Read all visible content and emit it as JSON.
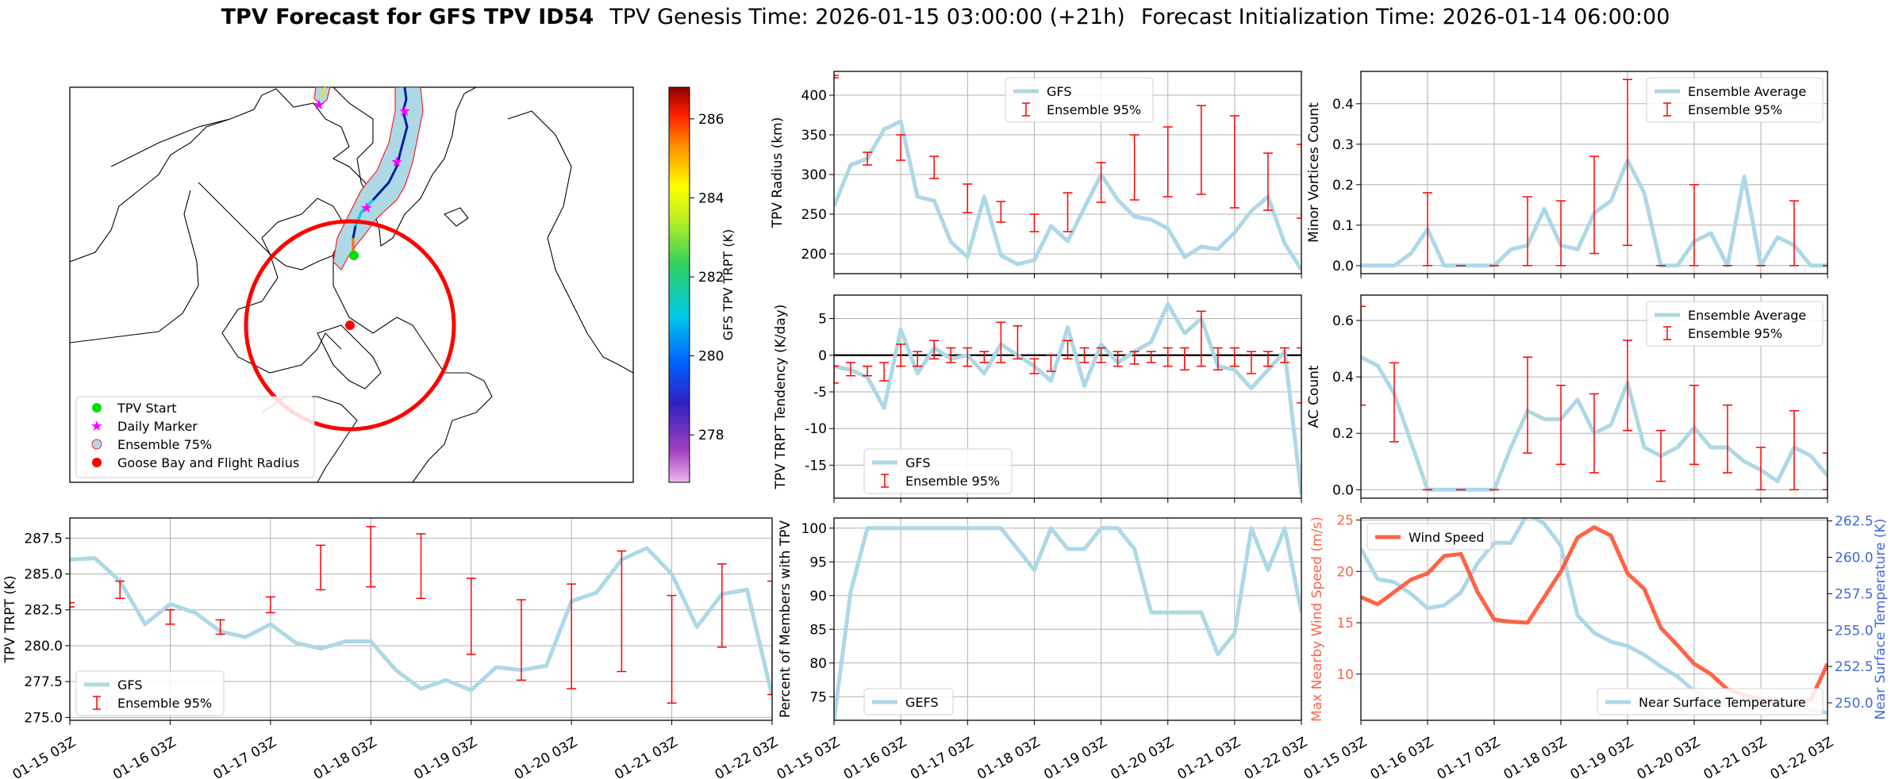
{
  "header": {
    "title_bold": "TPV Forecast for GFS TPV ID54",
    "genesis": "TPV Genesis Time: 2026-01-15 03:00:00 (+21h)",
    "init": "Forecast Initialization Time: 2026-01-14 06:00:00"
  },
  "colors": {
    "gfs_line": "#add8e6",
    "ensemble_bar": "#ff0000",
    "wind": "#ff6347",
    "temp_axis": "#4169e1",
    "grid": "#b0b0b0"
  },
  "chart_data": [
    {
      "id": "map",
      "type": "map",
      "legend": [
        "TPV Start",
        "Daily Marker",
        "Ensemble 75%",
        "Goose Bay and Flight Radius"
      ],
      "colorbar": {
        "label": "GFS TPV TRPT (K)",
        "ticks": [
          278,
          280,
          282,
          284,
          286
        ],
        "range": [
          276.8,
          286.8
        ]
      }
    },
    {
      "id": "radius",
      "type": "line",
      "ylabel": "TPV Radius (km)",
      "ylim": [
        175,
        430
      ],
      "yticks": [
        200,
        250,
        300,
        350,
        400
      ],
      "legend": [
        "GFS",
        "Ensemble 95%"
      ],
      "legend_pos": "top-center",
      "x": [
        0,
        0.25,
        0.5,
        0.75,
        1,
        1.25,
        1.5,
        1.75,
        2,
        2.25,
        2.5,
        2.75,
        3,
        3.25,
        3.5,
        3.75,
        4,
        4.25,
        4.5,
        4.75,
        5,
        5.25,
        5.5,
        5.75,
        6,
        6.25,
        6.5,
        6.75,
        7
      ],
      "gfs": [
        260,
        312,
        320,
        357,
        367,
        272,
        267,
        215,
        196,
        272,
        198,
        187,
        192,
        235,
        216,
        258,
        300,
        268,
        247,
        243,
        232,
        196,
        209,
        206,
        227,
        254,
        272,
        213,
        180
      ],
      "err_x": [
        0,
        0.5,
        1,
        1.5,
        2,
        2.5,
        3,
        3.5,
        4,
        4.5,
        5,
        5.5,
        6,
        6.5,
        7
      ],
      "err_lo": [
        422,
        312,
        318,
        295,
        252,
        240,
        228,
        228,
        265,
        268,
        272,
        275,
        258,
        255,
        245
      ],
      "err_hi": [
        425,
        328,
        350,
        323,
        288,
        266,
        250,
        277,
        315,
        350,
        360,
        387,
        374,
        327,
        338
      ]
    },
    {
      "id": "minor_vortices",
      "type": "line",
      "ylabel": "Minor Vortices Count",
      "ylim": [
        -0.02,
        0.48
      ],
      "yticks": [
        0.0,
        0.1,
        0.2,
        0.3,
        0.4
      ],
      "legend": [
        "Ensemble Average",
        "Ensemble 95%"
      ],
      "legend_pos": "top-right",
      "x": [
        0,
        0.25,
        0.5,
        0.75,
        1,
        1.25,
        1.5,
        1.75,
        2,
        2.25,
        2.5,
        2.75,
        3,
        3.25,
        3.5,
        3.75,
        4,
        4.25,
        4.5,
        4.75,
        5,
        5.25,
        5.5,
        5.75,
        6,
        6.25,
        6.5,
        6.75,
        7
      ],
      "avg": [
        0,
        0,
        0,
        0.03,
        0.09,
        0,
        0,
        0,
        0,
        0.04,
        0.05,
        0.14,
        0.05,
        0.04,
        0.13,
        0.16,
        0.26,
        0.18,
        0,
        0,
        0.06,
        0.08,
        0,
        0.22,
        0,
        0.07,
        0.05,
        0,
        0
      ],
      "err_x": [
        1,
        1.5,
        2,
        2.5,
        3,
        3.5,
        4,
        4.5,
        5,
        5.5,
        6,
        6.5,
        7
      ],
      "err_lo": [
        0,
        0,
        0,
        0,
        0,
        0.03,
        0.05,
        0,
        0,
        0,
        0,
        0,
        0
      ],
      "err_hi": [
        0.18,
        0,
        0,
        0.17,
        0.16,
        0.27,
        0.46,
        0,
        0.2,
        0,
        0,
        0.16,
        0
      ]
    },
    {
      "id": "tendency",
      "type": "line",
      "ylabel": "TPV TRPT Tendency (K/day)",
      "ylim": [
        -19.5,
        8.2
      ],
      "yticks": [
        -15,
        -10,
        -5,
        0,
        5
      ],
      "legend": [
        "GFS",
        "Ensemble 95%"
      ],
      "legend_pos": "bottom-left",
      "x": [
        0,
        0.25,
        0.5,
        0.75,
        1,
        1.25,
        1.5,
        1.75,
        2,
        2.25,
        2.5,
        2.75,
        3,
        3.25,
        3.5,
        3.75,
        4,
        4.25,
        4.5,
        4.75,
        5,
        5.25,
        5.5,
        5.75,
        6,
        6.25,
        6.5,
        6.75,
        7
      ],
      "gfs": [
        -1.5,
        -2.0,
        -3.0,
        -7.2,
        3.5,
        -2.5,
        1.0,
        -0.5,
        0.0,
        -2.5,
        1.5,
        0.0,
        -1.5,
        -3.5,
        3.8,
        -4.2,
        1.5,
        -1.0,
        0.5,
        1.8,
        7.0,
        3.0,
        5.0,
        -1.5,
        -2.0,
        -4.5,
        -2.0,
        0.5,
        -19.0
      ],
      "err_x": [
        0,
        0.25,
        0.5,
        0.75,
        1,
        1.25,
        1.5,
        1.75,
        2,
        2.25,
        2.5,
        2.75,
        3,
        3.25,
        3.5,
        3.75,
        4,
        4.25,
        4.5,
        4.75,
        5,
        5.25,
        5.5,
        5.75,
        6,
        6.25,
        6.5,
        6.75,
        7
      ],
      "err_lo": [
        -3.8,
        -2.8,
        -2.8,
        -3.5,
        -1.5,
        -1.5,
        -0.5,
        -1.0,
        -1.5,
        -1.0,
        -1.0,
        -0.5,
        -2.5,
        -2.2,
        -0.5,
        -1.0,
        -1.0,
        -1.5,
        -1.2,
        -1.0,
        -1.5,
        -2.0,
        -1.5,
        -2.0,
        -1.5,
        -2.5,
        -1.5,
        -1.0,
        -6.5
      ],
      "err_hi": [
        -1.5,
        -1.0,
        -1.5,
        -1.0,
        1.5,
        0.5,
        2.0,
        1.0,
        1.0,
        0.5,
        4.5,
        4.0,
        -0.5,
        0.0,
        2.0,
        1.0,
        1.0,
        0.5,
        0.5,
        0.5,
        1.0,
        1.0,
        6.0,
        1.0,
        1.0,
        0.5,
        0.5,
        1.0,
        1.0
      ],
      "hline": 0
    },
    {
      "id": "ac_count",
      "type": "line",
      "ylabel": "AC Count",
      "ylim": [
        -0.03,
        0.69
      ],
      "yticks": [
        0.0,
        0.2,
        0.4,
        0.6
      ],
      "legend": [
        "Ensemble Average",
        "Ensemble 95%"
      ],
      "legend_pos": "top-right",
      "x": [
        0,
        0.25,
        0.5,
        0.75,
        1,
        1.25,
        1.5,
        1.75,
        2,
        2.25,
        2.5,
        2.75,
        3,
        3.25,
        3.5,
        3.75,
        4,
        4.25,
        4.5,
        4.75,
        5,
        5.25,
        5.5,
        5.75,
        6,
        6.25,
        6.5,
        6.75,
        7
      ],
      "avg": [
        0.47,
        0.44,
        0.34,
        0.17,
        0,
        0,
        0,
        0,
        0,
        0.15,
        0.28,
        0.25,
        0.25,
        0.32,
        0.2,
        0.23,
        0.38,
        0.15,
        0.12,
        0.15,
        0.22,
        0.15,
        0.15,
        0.1,
        0.07,
        0.03,
        0.15,
        0.12,
        0.05
      ],
      "err_x": [
        0,
        0.5,
        1,
        1.5,
        2,
        2.5,
        3,
        3.5,
        4,
        4.5,
        5,
        5.5,
        6,
        6.5,
        7
      ],
      "err_lo": [
        0.3,
        0.17,
        0,
        0,
        0,
        0.13,
        0.09,
        0.06,
        0.21,
        0.03,
        0.09,
        0.06,
        0,
        0,
        0
      ],
      "err_hi": [
        0.65,
        0.45,
        0,
        0,
        0,
        0.47,
        0.37,
        0.34,
        0.53,
        0.21,
        0.37,
        0.3,
        0.15,
        0.28,
        0.13
      ]
    },
    {
      "id": "trpt",
      "type": "line",
      "ylabel": "TPV TRPT (K)",
      "ylim": [
        274.8,
        288.9
      ],
      "yticks": [
        275.0,
        277.5,
        280.0,
        282.5,
        285.0,
        287.5
      ],
      "ytick_labels": [
        "275.0",
        "277.5",
        "280.0",
        "282.5",
        "285.0",
        "287.5"
      ],
      "legend": [
        "GFS",
        "Ensemble 95%"
      ],
      "legend_pos": "bottom-left",
      "xtick_labels": [
        "01-15 03Z",
        "01-16 03Z",
        "01-17 03Z",
        "01-18 03Z",
        "01-19 03Z",
        "01-20 03Z",
        "01-21 03Z",
        "01-22 03Z"
      ],
      "x": [
        0,
        0.25,
        0.5,
        0.75,
        1,
        1.25,
        1.5,
        1.75,
        2,
        2.25,
        2.5,
        2.75,
        3,
        3.25,
        3.5,
        3.75,
        4,
        4.25,
        4.5,
        4.75,
        5,
        5.25,
        5.5,
        5.75,
        6,
        6.25,
        6.5,
        6.75,
        7
      ],
      "gfs": [
        286.0,
        286.1,
        284.5,
        281.5,
        282.9,
        282.3,
        281.0,
        280.6,
        281.5,
        280.2,
        279.8,
        280.3,
        280.3,
        278.3,
        277.0,
        277.6,
        276.9,
        278.5,
        278.3,
        278.6,
        283.1,
        283.7,
        286.0,
        286.8,
        285.0,
        281.3,
        283.6,
        283.9,
        276.5
      ],
      "err_x": [
        0,
        0.5,
        1,
        1.5,
        2,
        2.5,
        3,
        3.5,
        4,
        4.5,
        5,
        5.5,
        6,
        6.5,
        7
      ],
      "err_lo": [
        282.7,
        283.3,
        281.5,
        280.8,
        282.3,
        283.9,
        284.1,
        283.3,
        279.4,
        277.6,
        277.0,
        278.2,
        276.0,
        279.9,
        276.6
      ],
      "err_hi": [
        283.0,
        284.5,
        282.5,
        281.8,
        283.4,
        287.0,
        288.3,
        287.8,
        284.7,
        283.2,
        284.3,
        286.6,
        283.5,
        285.7,
        284.5
      ]
    },
    {
      "id": "percent_members",
      "type": "line",
      "ylabel": "Percent of Members with TPV",
      "ylim": [
        71.5,
        101.5
      ],
      "yticks": [
        75,
        80,
        85,
        90,
        95,
        100
      ],
      "legend": [
        "GEFS"
      ],
      "legend_pos": "bottom-left",
      "xtick_labels": [
        "01-15 03Z",
        "01-16 03Z",
        "01-17 03Z",
        "01-18 03Z",
        "01-19 03Z",
        "01-20 03Z",
        "01-21 03Z",
        "01-22 03Z"
      ],
      "x": [
        0,
        0.25,
        0.5,
        0.75,
        1,
        1.25,
        1.5,
        1.75,
        2,
        2.25,
        2.5,
        2.75,
        3,
        3.25,
        3.5,
        3.75,
        4,
        4.25,
        4.5,
        4.75,
        5,
        5.25,
        5.5,
        5.75,
        6,
        6.25,
        6.5,
        6.75,
        7
      ],
      "gefs": [
        71.5,
        90.6,
        100,
        100,
        100,
        100,
        100,
        100,
        100,
        100,
        100,
        96.9,
        93.8,
        100,
        96.9,
        96.9,
        100,
        100,
        96.9,
        87.5,
        87.5,
        87.5,
        87.5,
        81.3,
        84.4,
        100,
        93.8,
        100,
        87.5
      ]
    },
    {
      "id": "wind_temp",
      "type": "line",
      "ylabel_left": "Max Nearby Wind Speed (m/s)",
      "ylabel_right": "Near Surface Temperature (K)",
      "ylim_left": [
        5.5,
        25.2
      ],
      "yticks_left": [
        10,
        15,
        20,
        25
      ],
      "ylim_right": [
        248.8,
        262.7
      ],
      "yticks_right": [
        250.0,
        252.5,
        255.0,
        257.5,
        260.0,
        262.5
      ],
      "ytick_right_labels": [
        "250.0",
        "252.5",
        "255.0",
        "257.5",
        "260.0",
        "262.5"
      ],
      "legend_left": [
        "Wind Speed"
      ],
      "legend_right": [
        "Near Surface Temperature"
      ],
      "xtick_labels": [
        "01-15 03Z",
        "01-16 03Z",
        "01-17 03Z",
        "01-18 03Z",
        "01-19 03Z",
        "01-20 03Z",
        "01-21 03Z",
        "01-22 03Z"
      ],
      "x": [
        0,
        0.25,
        0.5,
        0.75,
        1,
        1.25,
        1.5,
        1.75,
        2,
        2.25,
        2.5,
        2.75,
        3,
        3.25,
        3.5,
        3.75,
        4,
        4.25,
        4.5,
        4.75,
        5,
        5.25,
        5.5,
        5.75,
        6,
        6.25,
        6.5,
        6.75,
        7
      ],
      "wind": [
        17.5,
        16.8,
        18.0,
        19.2,
        19.8,
        21.5,
        21.7,
        18.0,
        15.3,
        15.1,
        15.0,
        17.5,
        20.0,
        23.3,
        24.3,
        23.5,
        19.8,
        18.3,
        14.5,
        12.8,
        11.0,
        10.0,
        8.5,
        8.0,
        7.5,
        7.2,
        7.0,
        7.5,
        11.0
      ],
      "temp": [
        260.6,
        258.5,
        258.3,
        257.5,
        256.5,
        256.7,
        257.6,
        259.6,
        261.0,
        261.0,
        263.0,
        262.3,
        260.8,
        256.0,
        254.8,
        254.2,
        253.9,
        253.3,
        252.5,
        251.8,
        250.8,
        250.2,
        249.8,
        249.6,
        249.8,
        249.9,
        249.6,
        249.5,
        249.3
      ]
    }
  ]
}
